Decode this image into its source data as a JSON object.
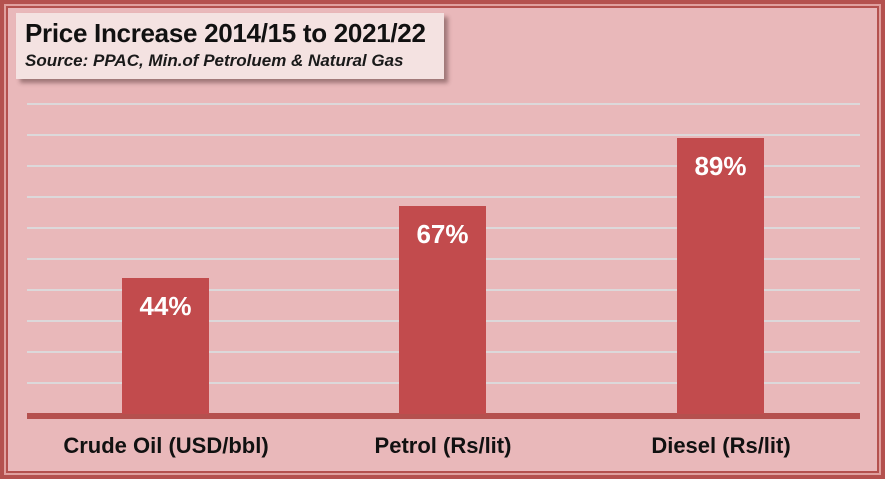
{
  "chart_data": {
    "type": "bar",
    "title": "Price Increase 2014/15 to 2021/22",
    "subtitle": "Source: PPAC, Min.of Petroluem & Natural Gas",
    "categories": [
      "Crude Oil (USD/bbl)",
      "Petrol (Rs/lit)",
      "Diesel (Rs/lit)"
    ],
    "values": [
      44,
      67,
      89
    ],
    "data_labels": [
      "44%",
      "67%",
      "89%"
    ],
    "xlabel": "",
    "ylabel": "",
    "ylim": [
      0,
      100
    ],
    "gridline_step": 10,
    "grid": true,
    "legend": "none",
    "y_tick_labels_visible": false
  },
  "colors": {
    "background": "#e9b8ba",
    "bar": "#c24b4d",
    "axis_line": "#b5504e",
    "gridline": "#dcd8da",
    "frame_dark": "#b4514e",
    "frame_light": "#e0a09e",
    "title_box_bg": "#f4e2e1",
    "title_text": "#111111",
    "bar_label_text": "#ffffff"
  }
}
